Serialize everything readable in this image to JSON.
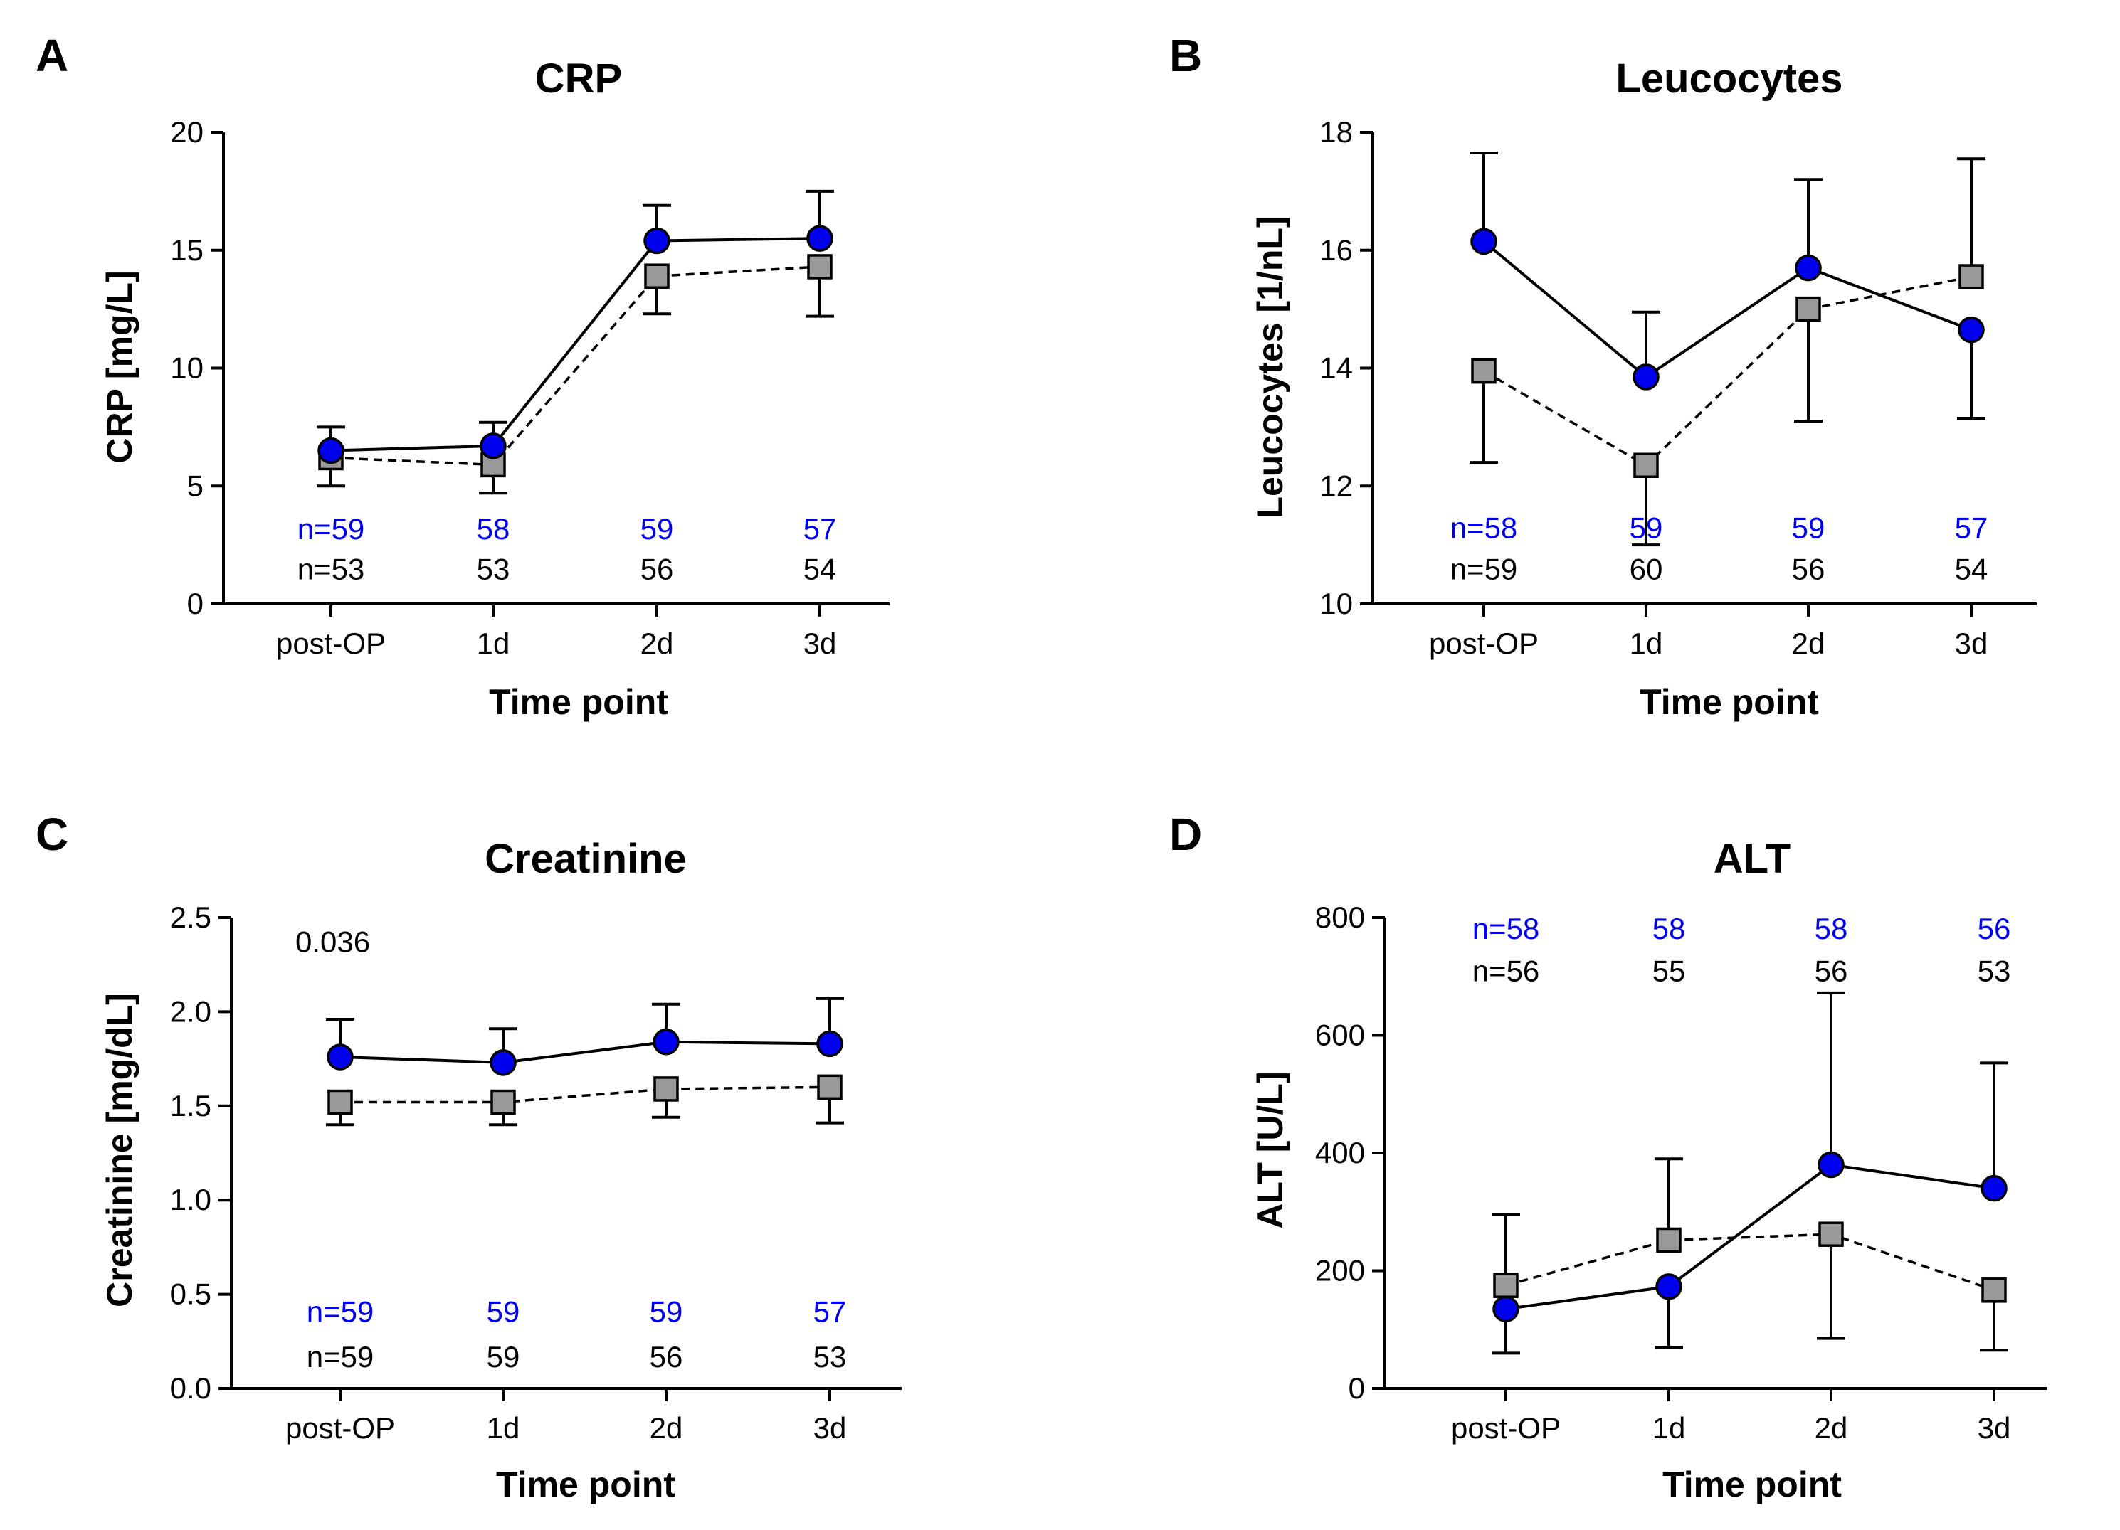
{
  "chart_data": [
    {
      "type": "line",
      "panel": "A",
      "title": "CRP",
      "xlabel": "Time point",
      "ylabel": "CRP [mg/L]",
      "categories": [
        "post-OP",
        "1d",
        "2d",
        "3d"
      ],
      "ylim": [
        0,
        20
      ],
      "yticks": [
        0,
        5,
        10,
        15,
        20
      ],
      "ytick_labels": [
        "0",
        "5",
        "10",
        "15",
        "20"
      ],
      "series": [
        {
          "name": "group 1 (blue circles, solid)",
          "marker": "circle",
          "line": "solid",
          "color": "#0000ee",
          "values": [
            6.5,
            6.7,
            15.4,
            15.5
          ],
          "upper": [
            7.5,
            7.7,
            16.9,
            17.5
          ],
          "lower": [
            null,
            null,
            null,
            null
          ],
          "n_labels": [
            "n=59",
            "58",
            "59",
            "57"
          ]
        },
        {
          "name": "group 2 (grey squares, dashed)",
          "marker": "square",
          "line": "dashed",
          "color": "#999999",
          "values": [
            6.2,
            5.9,
            13.9,
            14.3
          ],
          "upper": [
            null,
            null,
            null,
            null
          ],
          "lower": [
            5.0,
            4.7,
            12.3,
            12.2
          ],
          "n_labels": [
            "n=53",
            "53",
            "56",
            "54"
          ]
        }
      ],
      "n_rows_y": [
        3.2,
        1.5
      ]
    },
    {
      "type": "line",
      "panel": "B",
      "title": "Leucocytes",
      "xlabel": "Time point",
      "ylabel": "Leucocytes [1/nL]",
      "categories": [
        "post-OP",
        "1d",
        "2d",
        "3d"
      ],
      "ylim": [
        10,
        18
      ],
      "yticks": [
        10,
        12,
        14,
        16,
        18
      ],
      "ytick_labels": [
        "10",
        "12",
        "14",
        "16",
        "18"
      ],
      "series": [
        {
          "name": "group 1 (blue circles, solid)",
          "marker": "circle",
          "line": "solid",
          "color": "#0000ee",
          "values": [
            16.15,
            13.85,
            15.7,
            14.65
          ],
          "upper": [
            17.65,
            14.95,
            17.2,
            null
          ],
          "lower": [
            null,
            null,
            null,
            13.15
          ],
          "n_labels": [
            "n=58",
            "59",
            "59",
            "57"
          ]
        },
        {
          "name": "group 2 (grey squares, dashed)",
          "marker": "square",
          "line": "dashed",
          "color": "#999999",
          "values": [
            13.95,
            12.35,
            15.0,
            15.55
          ],
          "upper": [
            null,
            null,
            null,
            17.55
          ],
          "lower": [
            12.4,
            11.0,
            13.1,
            null
          ],
          "n_labels": [
            "n=59",
            "60",
            "56",
            "54"
          ]
        }
      ],
      "n_rows_y": [
        11.3,
        10.6
      ]
    },
    {
      "type": "line",
      "panel": "C",
      "title": "Creatinine",
      "xlabel": "Time point",
      "ylabel": "Creatinine [mg/dL]",
      "categories": [
        "post-OP",
        "1d",
        "2d",
        "3d"
      ],
      "ylim": [
        0.0,
        2.5
      ],
      "yticks": [
        0.0,
        0.5,
        1.0,
        1.5,
        2.0,
        2.5
      ],
      "ytick_labels": [
        "0.0",
        "0.5",
        "1.0",
        "1.5",
        "2.0",
        "2.5"
      ],
      "annotation": {
        "text": "0.036",
        "x": 0.2,
        "y": 2.37
      },
      "series": [
        {
          "name": "group 1 (blue circles, solid)",
          "marker": "circle",
          "line": "solid",
          "color": "#0000ee",
          "values": [
            1.76,
            1.73,
            1.84,
            1.83
          ],
          "upper": [
            1.96,
            1.91,
            2.04,
            2.07
          ],
          "lower": [
            null,
            null,
            null,
            null
          ],
          "n_labels": [
            "n=59",
            "59",
            "59",
            "57"
          ]
        },
        {
          "name": "group 2 (grey squares, dashed)",
          "marker": "square",
          "line": "dashed",
          "color": "#999999",
          "values": [
            1.52,
            1.52,
            1.59,
            1.6
          ],
          "upper": [
            null,
            null,
            null,
            null
          ],
          "lower": [
            1.4,
            1.4,
            1.44,
            1.41
          ],
          "n_labels": [
            "n=59",
            "59",
            "56",
            "53"
          ]
        }
      ],
      "n_rows_y": [
        0.41,
        0.17
      ]
    },
    {
      "type": "line",
      "panel": "D",
      "title": "ALT",
      "xlabel": "Time point",
      "ylabel": "ALT [U/L]",
      "categories": [
        "post-OP",
        "1d",
        "2d",
        "3d"
      ],
      "ylim": [
        0,
        800
      ],
      "yticks": [
        0,
        200,
        400,
        600,
        800
      ],
      "ytick_labels": [
        "0",
        "200",
        "400",
        "600",
        "800"
      ],
      "series": [
        {
          "name": "group 1 (blue circles, solid)",
          "marker": "circle",
          "line": "solid",
          "color": "#0000ee",
          "values": [
            135,
            173,
            380,
            340
          ],
          "upper": [
            null,
            null,
            672,
            553
          ],
          "lower": [
            60,
            70,
            null,
            null
          ],
          "n_labels": [
            "n=58",
            "58",
            "58",
            "56"
          ]
        },
        {
          "name": "group 2 (grey squares, dashed)",
          "marker": "square",
          "line": "dashed",
          "color": "#999999",
          "values": [
            175,
            252,
            262,
            167
          ],
          "upper": [
            295,
            390,
            null,
            null
          ],
          "lower": [
            null,
            null,
            85,
            65
          ],
          "n_labels": [
            "n=56",
            "55",
            "56",
            "53"
          ]
        }
      ],
      "n_rows_y": [
        782,
        710
      ]
    }
  ]
}
